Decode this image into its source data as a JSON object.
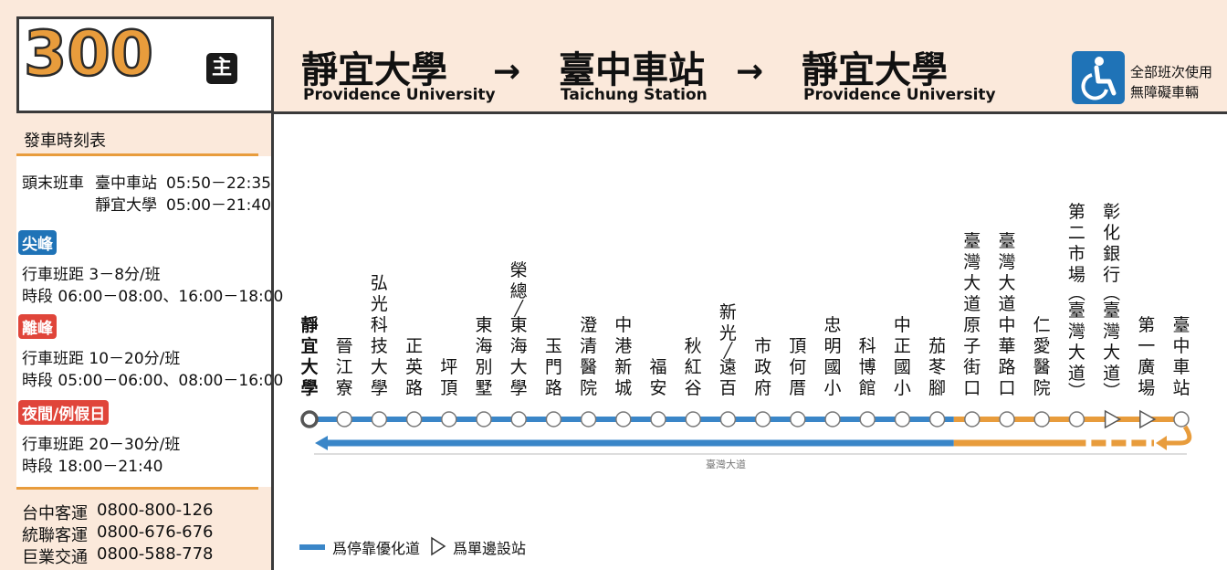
{
  "route": {
    "number": "300",
    "badge": "主"
  },
  "header": {
    "stops": [
      {
        "zh": "靜宜大學",
        "en": "Providence University"
      },
      {
        "zh": "臺中車站",
        "en": "Taichung Station"
      },
      {
        "zh": "靜宜大學",
        "en": "Providence University"
      }
    ],
    "arrow": "→",
    "accessibility": {
      "icon": "wheelchair-icon",
      "line1": "全部班次使用",
      "line2": "無障礙車輛"
    }
  },
  "timetable": {
    "title": "發車時刻表",
    "first_last": {
      "label": "頭末班車",
      "rows": [
        {
          "stop": "臺中車站",
          "time": "05:50－22:35"
        },
        {
          "stop": "靜宜大學",
          "time": "05:00－21:40"
        }
      ]
    },
    "periods": [
      {
        "badge": "尖峰",
        "color": "#1f73b7",
        "headway": "行車班距  3－8分/班",
        "hours": "時段  06:00－08:00、16:00－18:00"
      },
      {
        "badge": "離峰",
        "color": "#e0453a",
        "headway": "行車班距  10－20分/班",
        "hours": "時段  05:00－06:00、08:00－16:00"
      },
      {
        "badge": "夜間/例假日",
        "color": "#e0453a",
        "headway": "行車班距  20－30分/班",
        "hours": "時段  18:00－21:40"
      }
    ],
    "operators": [
      {
        "name": "台中客運",
        "phone": "0800-800-126"
      },
      {
        "name": "統聯客運",
        "phone": "0800-676-676"
      },
      {
        "name": "巨業交通",
        "phone": "0800-588-778"
      }
    ]
  },
  "diagram": {
    "stops": [
      "靜宜大學",
      "晉江寮",
      "弘光科技大學",
      "正英路",
      "坪頂",
      "東海別墅",
      "榮總/東海大學",
      "玉門路",
      "澄清醫院",
      "中港新城",
      "福安",
      "秋紅谷",
      "新光/遠百",
      "市政府",
      "頂何厝",
      "忠明國小",
      "科博館",
      "中正國小",
      "茄苳腳",
      "臺灣大道原子街口",
      "臺灣大道中華路口",
      "仁愛醫院",
      "第二市場(臺灣大道)",
      "彰化銀行(臺灣大道)",
      "第一廣場",
      "臺中車站"
    ],
    "one_side_stops": [
      23,
      24
    ],
    "road_label": "臺灣大道",
    "colors": {
      "priority": "#3a86c8",
      "normal": "#e89c3c"
    }
  },
  "legend": {
    "priority_lane": "爲停靠優化道",
    "one_side_stop": "爲單邊設站"
  }
}
